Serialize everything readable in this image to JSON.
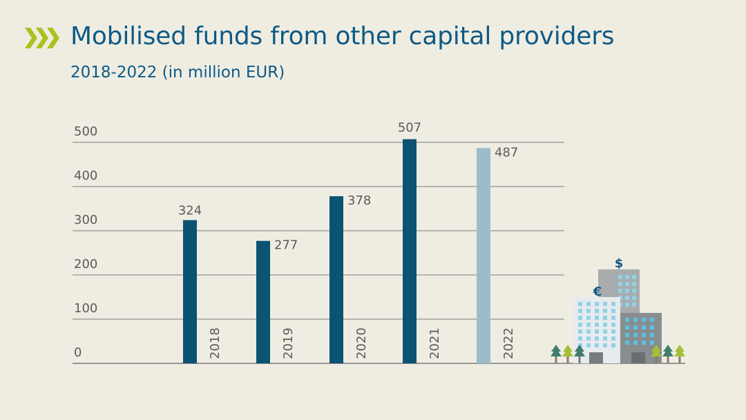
{
  "header": {
    "title": "Mobilised funds from other capital providers",
    "subtitle": "2018-2022 (in million EUR)"
  },
  "colors": {
    "background": "#efede2",
    "title": "#0e5a86",
    "bar": "#0b5373",
    "bar_highlight": "#9bbccb",
    "chevron": "#a9c21f",
    "axis_text": "#5a5a5a",
    "gridline": "#7a7a7a"
  },
  "illustration": {
    "icons": [
      "office-buildings-icon",
      "tree-icon",
      "euro-icon",
      "dollar-icon"
    ],
    "euro_symbol": "€",
    "dollar_symbol": "$"
  },
  "chart_data": {
    "type": "bar",
    "title": "Mobilised funds from other capital providers",
    "subtitle": "2018-2022 (in million EUR)",
    "xlabel": "",
    "ylabel": "",
    "categories": [
      "2018",
      "2019",
      "2020",
      "2021",
      "2022"
    ],
    "values": [
      324,
      277,
      378,
      507,
      487
    ],
    "value_labels": [
      "324",
      "277",
      "378",
      "507",
      "487"
    ],
    "highlight_category": "2022",
    "ylim": [
      0,
      500
    ],
    "yticks": [
      0,
      100,
      200,
      300,
      400,
      500
    ],
    "ytick_labels": [
      "0",
      "100",
      "200",
      "300",
      "400",
      "500"
    ],
    "grid": true,
    "legend": "none"
  }
}
